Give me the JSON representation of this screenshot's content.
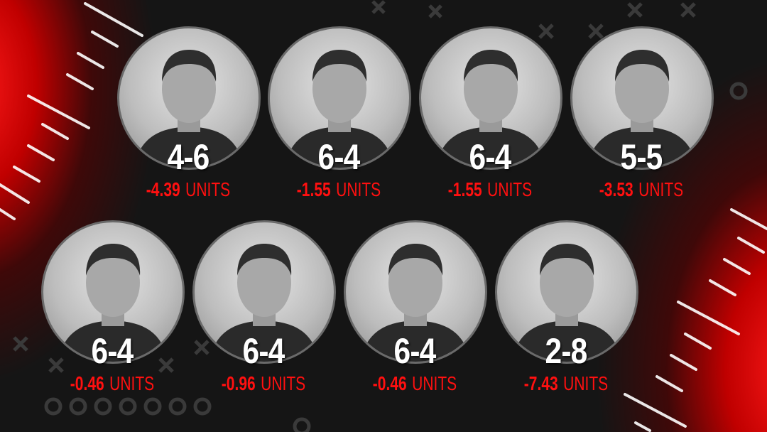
{
  "unit_label": "UNITS",
  "colors": {
    "accent": "#ff1010",
    "background": "#151515",
    "record": "#ffffff"
  },
  "experts": [
    {
      "record": "4-6",
      "units": "-4.39"
    },
    {
      "record": "6-4",
      "units": "-1.55"
    },
    {
      "record": "6-4",
      "units": "-1.55"
    },
    {
      "record": "5-5",
      "units": "-3.53"
    },
    {
      "record": "6-4",
      "units": "-0.46"
    },
    {
      "record": "6-4",
      "units": "-0.96"
    },
    {
      "record": "6-4",
      "units": "-0.46"
    },
    {
      "record": "2-8",
      "units": "-7.43"
    }
  ]
}
